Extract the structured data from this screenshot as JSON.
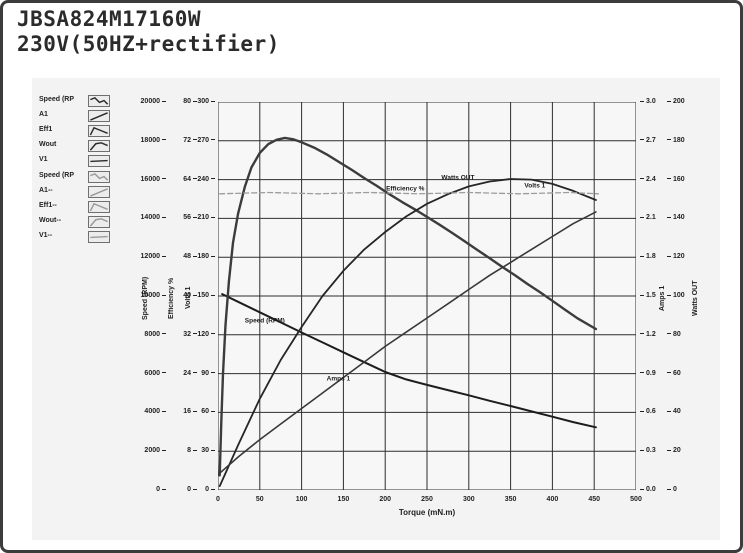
{
  "header": {
    "model": "JBSA824M17160W",
    "voltage": "230V(50HZ+rectifier)"
  },
  "legend": {
    "items": [
      {
        "label": "Speed (RP",
        "icon": "speed-curve-icon",
        "group": "solid"
      },
      {
        "label": "A1",
        "icon": "amps-curve-icon",
        "group": "solid"
      },
      {
        "label": "Eff1",
        "icon": "efficiency-curve-icon",
        "group": "solid"
      },
      {
        "label": "Wout",
        "icon": "watts-curve-icon",
        "group": "solid"
      },
      {
        "label": "V1",
        "icon": "volts-curve-icon",
        "group": "solid"
      },
      {
        "label": "Speed (RP",
        "icon": "speed-curve-icon",
        "group": "dashed"
      },
      {
        "label": "A1--",
        "icon": "amps-curve-icon",
        "group": "dashed"
      },
      {
        "label": "Eff1--",
        "icon": "efficiency-curve-icon",
        "group": "dashed"
      },
      {
        "label": "Wout--",
        "icon": "watts-curve-icon",
        "group": "dashed"
      },
      {
        "label": "V1--",
        "icon": "volts-curve-icon",
        "group": "dashed"
      }
    ],
    "solid_color": "#2a2a2a",
    "dashed_color": "#9a9a9a"
  },
  "chart_data": {
    "type": "line",
    "title": "",
    "xlabel": "Torque (mN.m)",
    "grid": "on",
    "x_axis": {
      "min": 0,
      "max": 500,
      "ticks": [
        "0",
        "50",
        "100",
        "150",
        "200",
        "250",
        "300",
        "350",
        "400",
        "450",
        "500"
      ]
    },
    "axes_left": [
      {
        "id": "speed",
        "label": "Speed (RPM)",
        "min": 0,
        "max": 20000,
        "ticks": [
          "20000",
          "18000",
          "16000",
          "14000",
          "12000",
          "10000",
          "8000",
          "6000",
          "4000",
          "2000",
          "0"
        ]
      },
      {
        "id": "efficiency",
        "label": "Efficiency %",
        "min": 0,
        "max": 80,
        "ticks": [
          "80",
          "72",
          "64",
          "56",
          "48",
          "40",
          "32",
          "24",
          "16",
          "8",
          "0"
        ]
      },
      {
        "id": "volts",
        "label": "Volts 1",
        "min": 0,
        "max": 300,
        "ticks": [
          "300",
          "270",
          "240",
          "210",
          "180",
          "150",
          "120",
          "90",
          "60",
          "30",
          "0"
        ]
      }
    ],
    "axes_right": [
      {
        "id": "amps",
        "label": "Amps 1",
        "min": 0,
        "max": 3,
        "ticks": [
          "3.0",
          "2.7",
          "2.4",
          "2.1",
          "1.8",
          "1.5",
          "1.2",
          "0.9",
          "0.6",
          "0.3",
          "0.0"
        ]
      },
      {
        "id": "watts",
        "label": "Watts OUT",
        "min": 0,
        "max": 200,
        "ticks": [
          "200",
          "180",
          "160",
          "140",
          "120",
          "100",
          "80",
          "60",
          "40",
          "20",
          "0"
        ]
      }
    ],
    "series": [
      {
        "name": "Speed (RPM)",
        "axis": "speed",
        "color": "#1d1d1d",
        "width": 2,
        "dashed": false,
        "points": [
          [
            5,
            10100
          ],
          [
            25,
            9680
          ],
          [
            50,
            9160
          ],
          [
            75,
            8640
          ],
          [
            100,
            8120
          ],
          [
            125,
            7610
          ],
          [
            150,
            7100
          ],
          [
            175,
            6590
          ],
          [
            200,
            6080
          ],
          [
            225,
            5700
          ],
          [
            250,
            5420
          ],
          [
            275,
            5150
          ],
          [
            300,
            4880
          ],
          [
            325,
            4600
          ],
          [
            350,
            4330
          ],
          [
            375,
            4050
          ],
          [
            400,
            3780
          ],
          [
            425,
            3500
          ],
          [
            452,
            3230
          ]
        ]
      },
      {
        "name": "Efficiency %",
        "axis": "efficiency",
        "color": "#3c3c3c",
        "width": 2.4,
        "dashed": false,
        "points": [
          [
            2,
            3
          ],
          [
            4,
            14
          ],
          [
            6,
            24
          ],
          [
            9,
            34
          ],
          [
            13,
            43
          ],
          [
            18,
            51
          ],
          [
            24,
            57
          ],
          [
            32,
            62.5
          ],
          [
            40,
            66.5
          ],
          [
            50,
            69.5
          ],
          [
            60,
            71.3
          ],
          [
            70,
            72.2
          ],
          [
            80,
            72.6
          ],
          [
            90,
            72.3
          ],
          [
            100,
            71.7
          ],
          [
            115,
            70.6
          ],
          [
            130,
            69.2
          ],
          [
            145,
            67.6
          ],
          [
            160,
            66
          ],
          [
            175,
            64.3
          ],
          [
            190,
            62.7
          ],
          [
            205,
            61
          ],
          [
            220,
            59.4
          ],
          [
            235,
            57.9
          ],
          [
            250,
            56.3
          ],
          [
            265,
            54.7
          ],
          [
            280,
            53
          ],
          [
            295,
            51.3
          ],
          [
            310,
            49.5
          ],
          [
            325,
            47.8
          ],
          [
            340,
            46
          ],
          [
            355,
            44.3
          ],
          [
            370,
            42.5
          ],
          [
            385,
            40.8
          ],
          [
            400,
            39
          ],
          [
            415,
            37.2
          ],
          [
            430,
            35.4
          ],
          [
            452,
            33.2
          ]
        ]
      },
      {
        "name": "Watts OUT",
        "axis": "watts",
        "color": "#262626",
        "width": 1.8,
        "dashed": false,
        "points": [
          [
            2,
            2
          ],
          [
            25,
            24
          ],
          [
            50,
            47
          ],
          [
            75,
            67
          ],
          [
            100,
            84
          ],
          [
            125,
            100
          ],
          [
            150,
            113
          ],
          [
            175,
            124
          ],
          [
            200,
            133
          ],
          [
            225,
            141
          ],
          [
            250,
            147.5
          ],
          [
            275,
            152.5
          ],
          [
            300,
            156.5
          ],
          [
            325,
            159
          ],
          [
            350,
            160.3
          ],
          [
            375,
            160
          ],
          [
            400,
            157.8
          ],
          [
            425,
            154.2
          ],
          [
            452,
            149.5
          ]
        ]
      },
      {
        "name": "Amps 1",
        "axis": "amps",
        "color": "#383838",
        "width": 1.6,
        "dashed": false,
        "points": [
          [
            2,
            0.13
          ],
          [
            25,
            0.26
          ],
          [
            50,
            0.39
          ],
          [
            75,
            0.51
          ],
          [
            100,
            0.63
          ],
          [
            125,
            0.75
          ],
          [
            150,
            0.87
          ],
          [
            175,
            0.99
          ],
          [
            200,
            1.11
          ],
          [
            225,
            1.22
          ],
          [
            250,
            1.33
          ],
          [
            275,
            1.44
          ],
          [
            300,
            1.55
          ],
          [
            325,
            1.66
          ],
          [
            350,
            1.76
          ],
          [
            375,
            1.86
          ],
          [
            400,
            1.96
          ],
          [
            425,
            2.06
          ],
          [
            452,
            2.15
          ]
        ]
      },
      {
        "name": "Volts 1",
        "axis": "volts",
        "color": "#9c9c9c",
        "width": 1.3,
        "dashed": true,
        "points": [
          [
            2,
            229
          ],
          [
            60,
            230
          ],
          [
            120,
            229
          ],
          [
            180,
            230
          ],
          [
            240,
            229
          ],
          [
            300,
            230
          ],
          [
            360,
            229
          ],
          [
            420,
            230
          ],
          [
            455,
            229
          ]
        ]
      }
    ],
    "curve_labels": [
      {
        "text": "Speed (RPM)",
        "axis": "speed",
        "t": 56,
        "v": 8700
      },
      {
        "text": "Efficiency %",
        "axis": "efficiency",
        "t": 224,
        "v": 62
      },
      {
        "text": "Watts OUT",
        "axis": "watts",
        "t": 287,
        "v": 161
      },
      {
        "text": "Volts 1",
        "axis": "volts",
        "t": 379,
        "v": 235
      },
      {
        "text": "Amps 1",
        "axis": "amps",
        "t": 144,
        "v": 0.86
      }
    ]
  }
}
